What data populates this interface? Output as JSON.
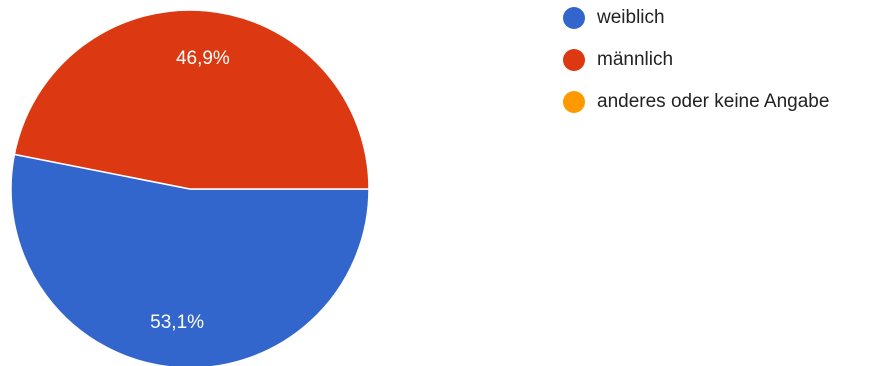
{
  "chart_data": {
    "type": "pie",
    "categories": [
      "weiblich",
      "männlich",
      "anderes oder keine Angabe"
    ],
    "values": [
      53.1,
      46.9,
      0
    ],
    "value_labels": [
      "53,1%",
      "46,9%",
      ""
    ],
    "colors": [
      "#3366cc",
      "#dc3912",
      "#ff9900"
    ],
    "legend_position": "right"
  }
}
